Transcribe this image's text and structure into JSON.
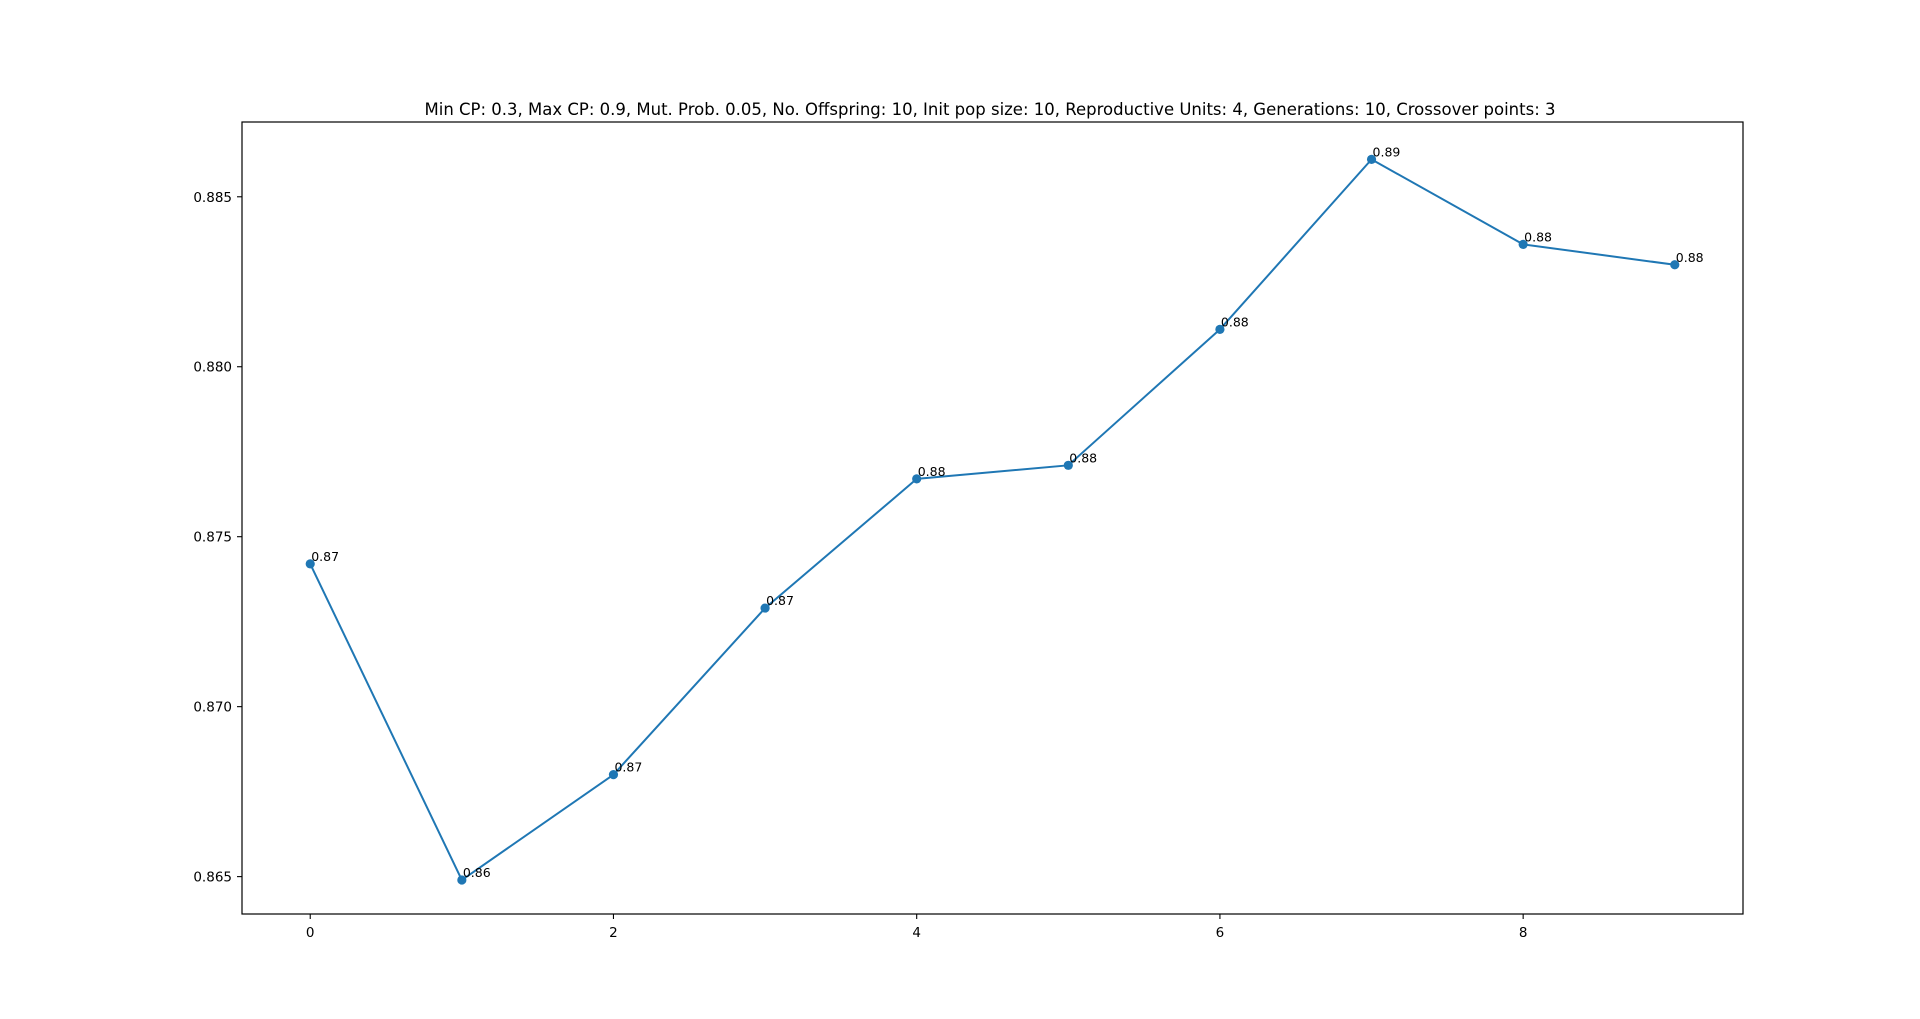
{
  "chart_data": {
    "type": "line",
    "title": "Min CP: 0.3, Max CP: 0.9, Mut. Prob. 0.05, No. Offspring: 10, Init pop size: 10, Reproductive Units: 4, Generations: 10, Crossover points: 3",
    "xlabel": "",
    "ylabel": "",
    "xlim": [
      -0.45,
      9.45
    ],
    "ylim": [
      0.8639,
      0.8872
    ],
    "x_ticks": [
      0,
      2,
      4,
      6,
      8
    ],
    "x_tick_labels": [
      "0",
      "2",
      "4",
      "6",
      "8"
    ],
    "y_ticks": [
      0.865,
      0.87,
      0.875,
      0.88,
      0.885
    ],
    "y_tick_labels": [
      "0.865",
      "0.870",
      "0.875",
      "0.880",
      "0.885"
    ],
    "grid": false,
    "legend": "none",
    "series": [
      {
        "color": "#1f77b4",
        "marker": "circle",
        "x": [
          0,
          1,
          2,
          3,
          4,
          5,
          6,
          7,
          8,
          9
        ],
        "y": [
          0.8742,
          0.8649,
          0.868,
          0.8729,
          0.8767,
          0.8771,
          0.8811,
          0.8861,
          0.8836,
          0.883
        ],
        "labels": [
          "0.87",
          "0.86",
          "0.87",
          "0.87",
          "0.88",
          "0.88",
          "0.88",
          "0.89",
          "0.88",
          "0.88"
        ]
      }
    ]
  }
}
